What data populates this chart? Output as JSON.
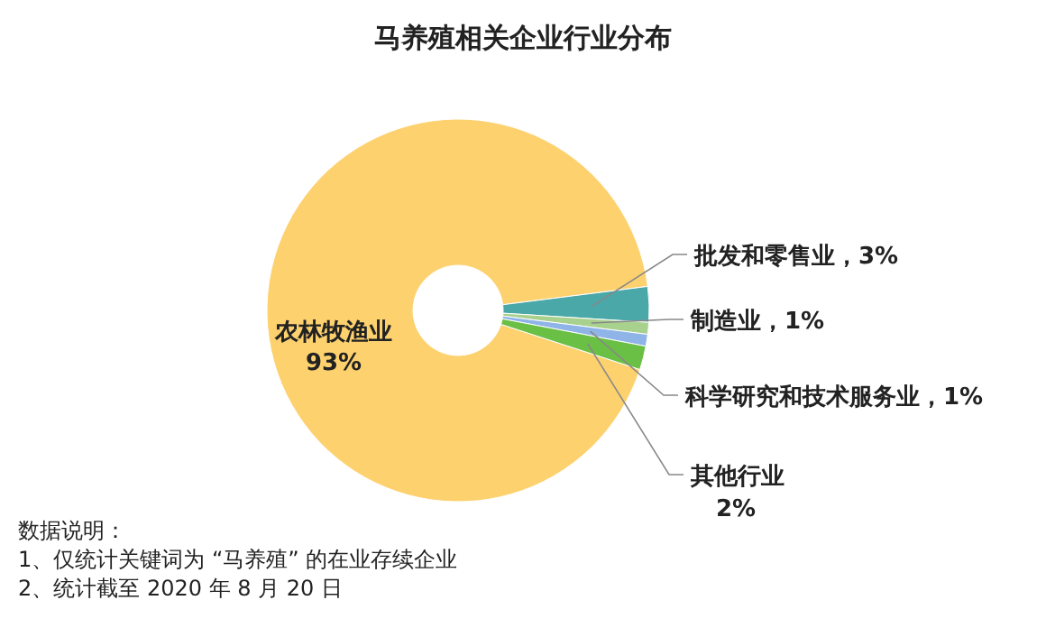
{
  "chart_data": {
    "type": "donut",
    "title": "马养殖相关企业行业分布",
    "categories": [
      "农林牧渔业",
      "批发和零售业",
      "制造业",
      "科学研究和技术服务业",
      "其他行业"
    ],
    "values": [
      93,
      3,
      1,
      1,
      2
    ],
    "value_labels": [
      "93%",
      "3%",
      "1%",
      "1%",
      "2%"
    ],
    "colors": [
      "#fdd16e",
      "#4aa8a8",
      "#a9d18e",
      "#8fb4e8",
      "#6abf45"
    ],
    "legend": false,
    "annotations": [
      "数据说明：",
      "1、仅统计关键词为 “马养殖” 的在业存续企业",
      "2、统计截至 2020 年 8 月 20 日"
    ]
  }
}
